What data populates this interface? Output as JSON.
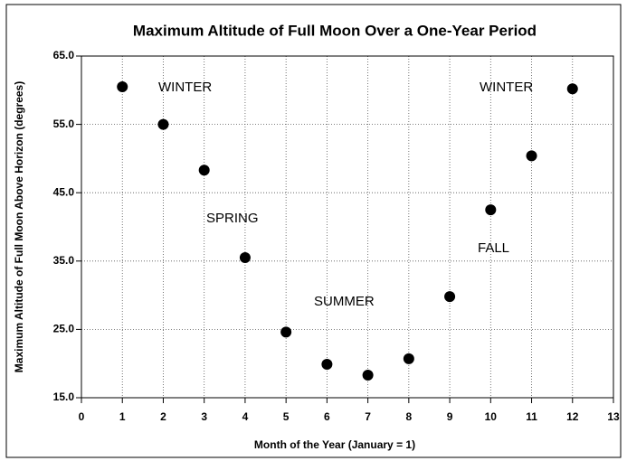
{
  "chart_data": {
    "type": "scatter",
    "title": "Maximum Altitude of Full Moon Over a One-Year Period",
    "x_label": "Month of the Year (January = 1)",
    "y_label": "Maximum Altitude of Full Moon Above Horizon (degrees)",
    "series": [
      {
        "name": null,
        "color": "#000000",
        "x": [
          1,
          2,
          3,
          4,
          5,
          6,
          7,
          8,
          9,
          10,
          11,
          12
        ],
        "values": [
          60.5,
          55,
          48.3,
          35.5,
          24.6,
          19.9,
          18.3,
          20.7,
          29.8,
          42.5,
          50.4,
          60.2
        ]
      }
    ],
    "xlim": [
      0,
      13
    ],
    "xticks": [
      0,
      1,
      2,
      3,
      4,
      5,
      6,
      7,
      8,
      9,
      10,
      11,
      12,
      13
    ],
    "ylim": [
      15,
      65
    ],
    "yticks": [
      {
        "value": 15,
        "label": "15.0"
      },
      {
        "value": 25,
        "label": "25.0"
      },
      {
        "value": 35,
        "label": "35.0"
      },
      {
        "value": 45,
        "label": "45.0"
      },
      {
        "value": 55,
        "label": "55.0"
      },
      {
        "value": 65,
        "label": "65.0"
      }
    ],
    "grid": true,
    "annotations": [
      "WINTER",
      "SPRING",
      "SUMMER",
      "FALL",
      "WINTER"
    ]
  }
}
